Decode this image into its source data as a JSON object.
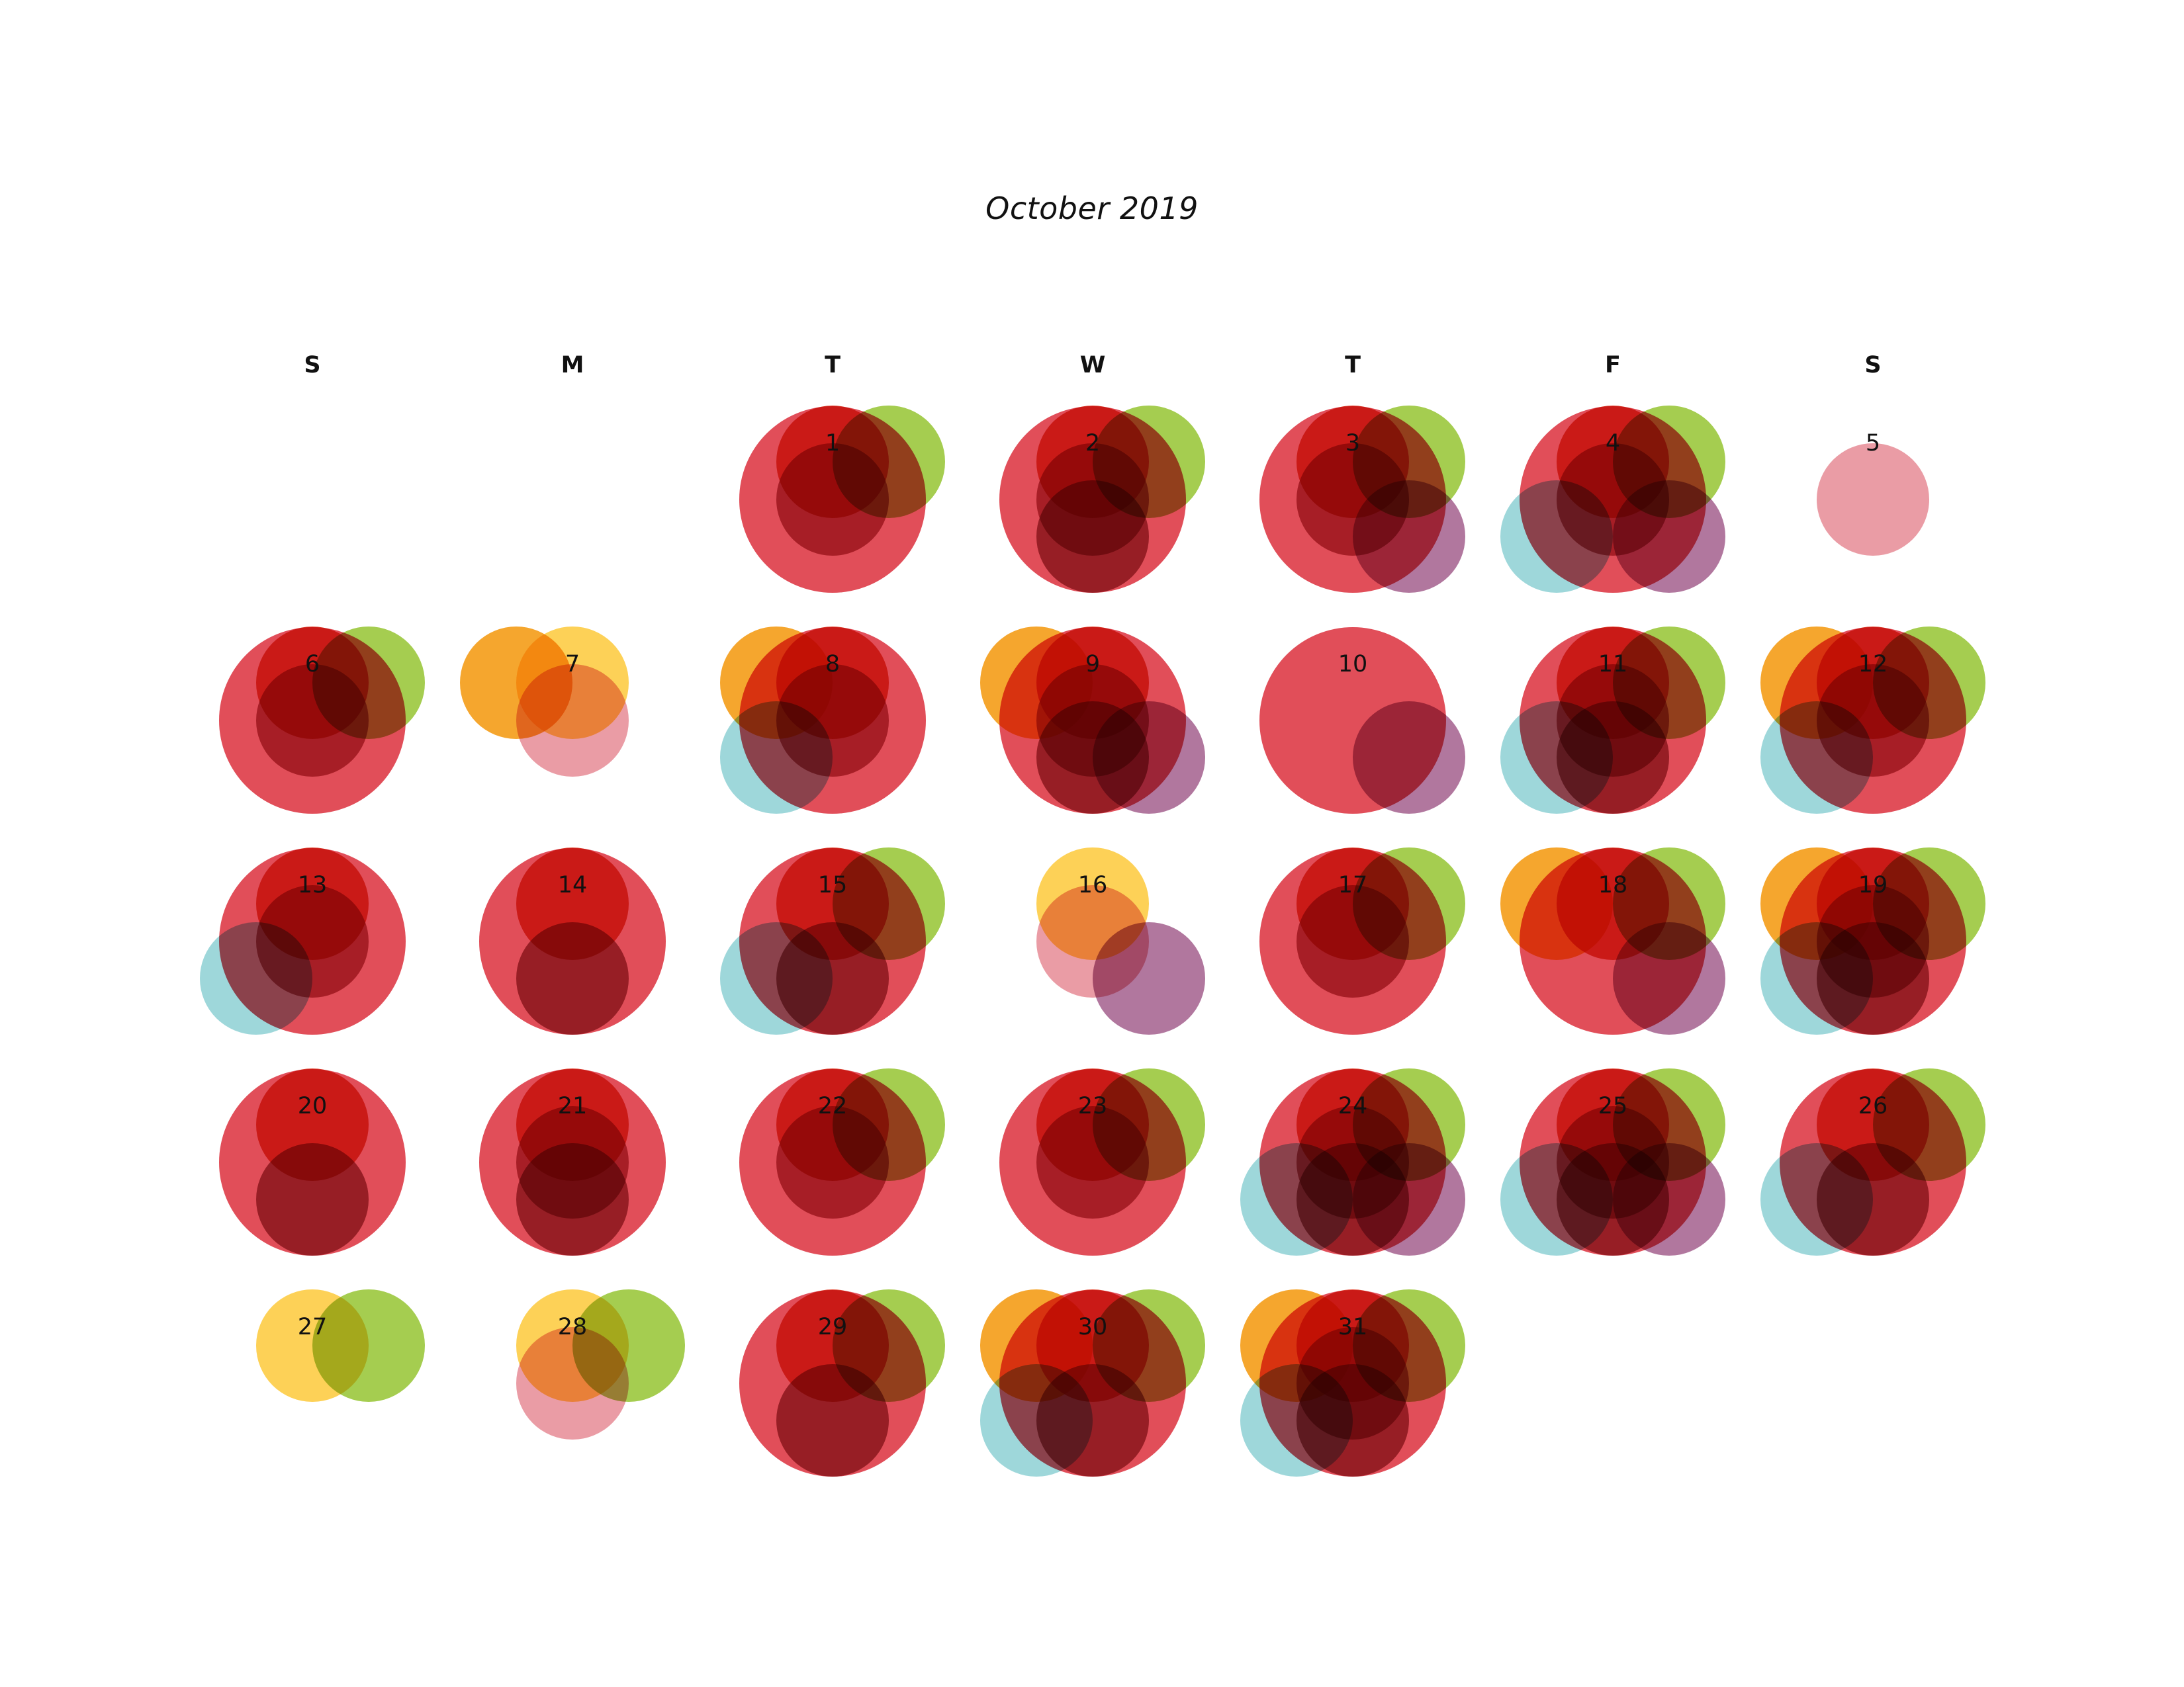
{
  "title": "October 2019",
  "weekdays": [
    "S",
    "M",
    "T",
    "W",
    "T",
    "F",
    "S"
  ],
  "colors": {
    "large_red": "#dc2f3c",
    "orange_red": "#e1361f",
    "dark_red": "#a82a3a",
    "maroon": "#8f2a35",
    "green": "#8cbf1e",
    "purple": "#934278",
    "teal": "#69c2c6",
    "yellow": "#fcc21e",
    "orange": "#f39200",
    "pink": "#dc5a68"
  },
  "days": [
    {
      "day": "1",
      "circles": [
        "large_red",
        "orange_red",
        "dark_red",
        "green"
      ]
    },
    {
      "day": "2",
      "circles": [
        "large_red",
        "orange_red",
        "dark_red",
        "maroon",
        "green"
      ]
    },
    {
      "day": "3",
      "circles": [
        "large_red",
        "orange_red",
        "dark_red",
        "green",
        "purple"
      ]
    },
    {
      "day": "4",
      "circles": [
        "large_red",
        "orange_red",
        "dark_red",
        "green",
        "teal",
        "purple"
      ]
    },
    {
      "day": "5",
      "circles": [
        "pink"
      ]
    },
    {
      "day": "6",
      "circles": [
        "large_red",
        "orange_red",
        "dark_red",
        "green"
      ]
    },
    {
      "day": "7",
      "circles": [
        "orange",
        "yellow",
        "pink"
      ]
    },
    {
      "day": "8",
      "circles": [
        "large_red",
        "orange_red",
        "dark_red",
        "orange",
        "teal"
      ]
    },
    {
      "day": "9",
      "circles": [
        "large_red",
        "orange_red",
        "dark_red",
        "orange",
        "maroon",
        "purple"
      ]
    },
    {
      "day": "10",
      "circles": [
        "large_red",
        "purple"
      ]
    },
    {
      "day": "11",
      "circles": [
        "large_red",
        "orange_red",
        "dark_red",
        "maroon",
        "green",
        "teal"
      ]
    },
    {
      "day": "12",
      "circles": [
        "large_red",
        "orange_red",
        "dark_red",
        "orange",
        "green",
        "teal"
      ]
    },
    {
      "day": "13",
      "circles": [
        "large_red",
        "orange_red",
        "dark_red",
        "teal"
      ]
    },
    {
      "day": "14",
      "circles": [
        "large_red",
        "orange_red",
        "maroon"
      ]
    },
    {
      "day": "15",
      "circles": [
        "large_red",
        "orange_red",
        "maroon",
        "green",
        "teal"
      ]
    },
    {
      "day": "16",
      "circles": [
        "yellow",
        "pink",
        "purple"
      ]
    },
    {
      "day": "17",
      "circles": [
        "large_red",
        "orange_red",
        "dark_red",
        "green"
      ]
    },
    {
      "day": "18",
      "circles": [
        "large_red",
        "orange_red",
        "orange",
        "green",
        "purple"
      ]
    },
    {
      "day": "19",
      "circles": [
        "large_red",
        "orange_red",
        "dark_red",
        "orange",
        "green",
        "teal",
        "maroon"
      ]
    },
    {
      "day": "20",
      "circles": [
        "large_red",
        "orange_red",
        "maroon"
      ]
    },
    {
      "day": "21",
      "circles": [
        "large_red",
        "orange_red",
        "dark_red",
        "maroon"
      ]
    },
    {
      "day": "22",
      "circles": [
        "large_red",
        "orange_red",
        "dark_red",
        "green"
      ]
    },
    {
      "day": "23",
      "circles": [
        "large_red",
        "orange_red",
        "dark_red",
        "green"
      ]
    },
    {
      "day": "24",
      "circles": [
        "large_red",
        "orange_red",
        "dark_red",
        "maroon",
        "green",
        "teal",
        "purple"
      ]
    },
    {
      "day": "25",
      "circles": [
        "large_red",
        "orange_red",
        "dark_red",
        "maroon",
        "green",
        "teal",
        "purple"
      ]
    },
    {
      "day": "26",
      "circles": [
        "large_red",
        "orange_red",
        "maroon",
        "green",
        "teal"
      ]
    },
    {
      "day": "27",
      "circles": [
        "yellow",
        "green"
      ]
    },
    {
      "day": "28",
      "circles": [
        "yellow",
        "pink",
        "green"
      ]
    },
    {
      "day": "29",
      "circles": [
        "large_red",
        "orange_red",
        "maroon",
        "green"
      ]
    },
    {
      "day": "30",
      "circles": [
        "large_red",
        "orange_red",
        "orange",
        "green",
        "teal",
        "maroon"
      ]
    },
    {
      "day": "31",
      "circles": [
        "large_red",
        "orange_red",
        "dark_red",
        "orange",
        "green",
        "teal",
        "maroon"
      ]
    }
  ]
}
